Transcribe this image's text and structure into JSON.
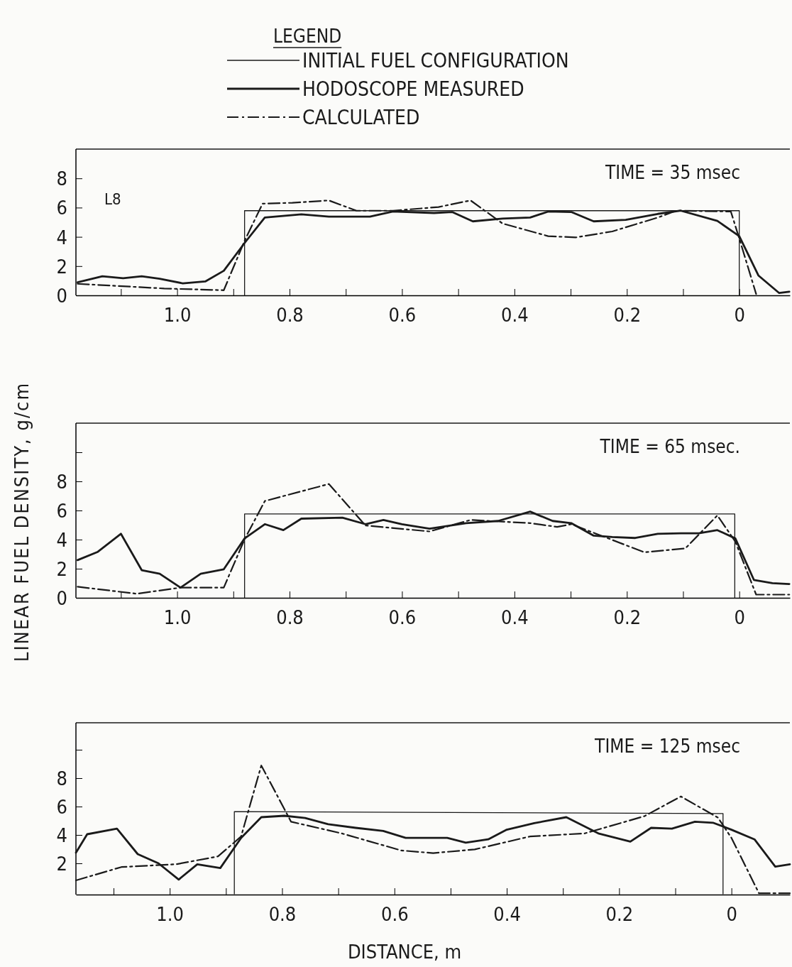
{
  "chart_data": [
    {
      "type": "line",
      "legend": "top",
      "legend_title": "LEGEND",
      "annotations": [
        "TIME = 35 msec",
        "L8"
      ],
      "xlim": [
        1.18,
        -0.09
      ],
      "ylim": [
        0,
        10
      ],
      "xticks": [
        {
          "value": 1.1,
          "label": null
        },
        {
          "value": 1,
          "label": "1.0"
        },
        {
          "value": 0.9,
          "label": null
        },
        0.8,
        {
          "value": 0.7,
          "label": null
        },
        0.6,
        {
          "value": 0.5,
          "label": null
        },
        0.4,
        {
          "value": 0.3,
          "label": null
        },
        0.2,
        {
          "value": 0.1,
          "label": null
        },
        0
      ],
      "yticks": [
        0,
        2,
        4,
        6,
        8
      ],
      "series": [
        {
          "name": "INITIAL FUEL CONFIGURATION",
          "color": "#1a1a1a",
          "line_style": "solid",
          "x": [
            0.88,
            0.88,
            0,
            0
          ],
          "values": [
            0,
            5.79,
            5.79,
            0
          ]
        },
        {
          "name": "HODOSCOPE MEASURED",
          "color": "#1a1a1a",
          "line_style": "solid",
          "x": [
            1.177,
            1.133,
            1.096,
            1.063,
            1.031,
            0.99,
            0.95,
            0.917,
            0.88,
            0.844,
            0.779,
            0.73,
            0.657,
            0.616,
            0.543,
            0.511,
            0.474,
            0.421,
            0.372,
            0.34,
            0.299,
            0.259,
            0.202,
            0.145,
            0.104,
            0.039,
            0,
            -0.034,
            -0.071,
            -0.089
          ],
          "values": [
            0.89,
            1.3,
            1.17,
            1.3,
            1.14,
            0.82,
            0.95,
            1.68,
            3.58,
            5.32,
            5.54,
            5.38,
            5.38,
            5.73,
            5.63,
            5.7,
            5.06,
            5.25,
            5.32,
            5.73,
            5.7,
            5.06,
            5.16,
            5.57,
            5.79,
            5.09,
            4.05,
            1.36,
            0.16,
            0.25
          ]
        },
        {
          "name": "CALCULATED",
          "color": "#1a1a1a",
          "line_style": "dashed",
          "x": [
            1.177,
            1.023,
            0.917,
            0.88,
            0.848,
            0.795,
            0.73,
            0.681,
            0.616,
            0.535,
            0.478,
            0.421,
            0.34,
            0.291,
            0.226,
            0.145,
            0.112,
            0.015,
            0,
            -0.03
          ],
          "values": [
            0.79,
            0.47,
            0.35,
            3.73,
            6.27,
            6.33,
            6.49,
            5.79,
            5.79,
            6.04,
            6.49,
            4.91,
            4.05,
            3.96,
            4.37,
            5.32,
            5.79,
            5.73,
            3.89,
            0.09
          ]
        }
      ]
    },
    {
      "type": "line",
      "ylabel": "LINEAR FUEL DENSITY, g/cm",
      "annotations": [
        "TIME = 65 msec."
      ],
      "xlim": [
        1.18,
        -0.09
      ],
      "ylim": [
        0,
        12
      ],
      "xticks": [
        {
          "value": 1.1,
          "label": null
        },
        {
          "value": 1,
          "label": "1.0"
        },
        {
          "value": 0.9,
          "label": null
        },
        0.8,
        {
          "value": 0.7,
          "label": null
        },
        0.6,
        {
          "value": 0.5,
          "label": null
        },
        0.4,
        {
          "value": 0.3,
          "label": null
        },
        0.2,
        {
          "value": 0.1,
          "label": null
        },
        0
      ],
      "yticks": [
        0,
        2,
        4,
        6,
        8,
        {
          "value": 10,
          "label": null
        }
      ],
      "series": [
        {
          "color": "#1a1a1a",
          "line_style": "solid",
          "x": [
            0.88,
            0.88,
            0.008,
            0.008
          ],
          "values": [
            0,
            5.76,
            5.76,
            0
          ]
        },
        {
          "color": "#1a1a1a",
          "line_style": "solid",
          "x": [
            1.177,
            1.141,
            1.1,
            1.063,
            1.031,
            0.994,
            0.958,
            0.917,
            0.88,
            0.844,
            0.811,
            0.779,
            0.706,
            0.665,
            0.633,
            0.6,
            0.551,
            0.486,
            0.429,
            0.372,
            0.332,
            0.299,
            0.259,
            0.226,
            0.185,
            0.145,
            0.104,
            0.072,
            0.039,
            0.007,
            -0.026,
            -0.059,
            -0.089
          ],
          "values": [
            2.59,
            3.16,
            4.4,
            1.9,
            1.65,
            0.7,
            1.65,
            1.96,
            4.08,
            5.06,
            4.65,
            5.44,
            5.51,
            5.06,
            5.35,
            5.06,
            4.75,
            5.13,
            5.28,
            5.92,
            5.28,
            5.13,
            4.27,
            4.18,
            4.11,
            4.4,
            4.43,
            4.43,
            4.65,
            4.08,
            1.23,
            1.01,
            0.95
          ]
        },
        {
          "color": "#1a1a1a",
          "line_style": "dashed",
          "x": [
            1.177,
            1.072,
            0.994,
            0.917,
            0.88,
            0.844,
            0.73,
            0.665,
            0.551,
            0.478,
            0.372,
            0.324,
            0.299,
            0.169,
            0.096,
            0.039,
            0.007,
            -0.03,
            -0.089
          ],
          "values": [
            0.76,
            0.28,
            0.7,
            0.7,
            4.02,
            6.65,
            7.82,
            4.97,
            4.56,
            5.35,
            5.13,
            4.87,
            5.06,
            3.13,
            3.39,
            5.66,
            3.86,
            0.22,
            0.22
          ]
        }
      ]
    },
    {
      "type": "line",
      "xlabel": "DISTANCE, m",
      "annotations": [
        "TIME = 125 msec"
      ],
      "xlim": [
        1.167,
        -0.104
      ],
      "ylim": [
        -0.2,
        11.9
      ],
      "xticks": [
        {
          "value": 1.1,
          "label": null
        },
        {
          "value": 1,
          "label": "1.0"
        },
        {
          "value": 0.9,
          "label": null
        },
        0.8,
        {
          "value": 0.7,
          "label": null
        },
        0.6,
        {
          "value": 0.5,
          "label": null
        },
        0.4,
        {
          "value": 0.3,
          "label": null
        },
        0.2,
        {
          "value": 0.1,
          "label": null
        },
        0
      ],
      "yticks": [
        2,
        4,
        6,
        8,
        {
          "value": 10,
          "label": null
        }
      ],
      "series": [
        {
          "color": "#1a1a1a",
          "line_style": "solid",
          "x": [
            0.885,
            0.885,
            0.015,
            0.015
          ],
          "values": [
            -0.15,
            5.64,
            5.51,
            -0.15
          ]
        },
        {
          "color": "#1a1a1a",
          "line_style": "solid",
          "x": [
            1.167,
            1.147,
            1.094,
            1.057,
            1.02,
            0.984,
            0.951,
            0.91,
            0.873,
            0.837,
            0.796,
            0.759,
            0.718,
            0.669,
            0.62,
            0.58,
            0.539,
            0.506,
            0.473,
            0.433,
            0.4,
            0.351,
            0.294,
            0.237,
            0.18,
            0.143,
            0.106,
            0.065,
            0.033,
            0,
            -0.041,
            -0.078,
            -0.104
          ],
          "values": [
            2.75,
            4.05,
            4.44,
            2.65,
            2,
            0.86,
            1.93,
            1.67,
            3.79,
            5.25,
            5.35,
            5.19,
            4.76,
            4.5,
            4.28,
            3.79,
            3.79,
            3.79,
            3.46,
            3.69,
            4.37,
            4.83,
            5.25,
            4.11,
            3.53,
            4.5,
            4.44,
            4.93,
            4.86,
            4.37,
            3.69,
            1.77,
            1.93
          ]
        },
        {
          "color": "#1a1a1a",
          "line_style": "dashed",
          "x": [
            1.167,
            1.086,
            0.988,
            0.914,
            0.873,
            0.837,
            0.784,
            0.694,
            0.588,
            0.531,
            0.457,
            0.359,
            0.261,
            0.155,
            0.09,
            0.024,
            0,
            -0.049,
            -0.104
          ],
          "values": [
            0.8,
            1.74,
            1.94,
            2.49,
            3.89,
            8.89,
            4.93,
            4.11,
            2.91,
            2.72,
            2.98,
            3.89,
            4.11,
            5.32,
            6.71,
            5.22,
            3.79,
            -0.11,
            -0.11
          ]
        }
      ]
    }
  ]
}
